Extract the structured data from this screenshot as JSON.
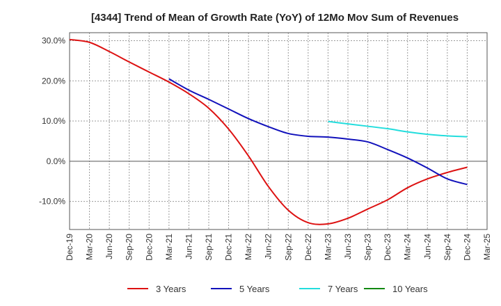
{
  "chart_data": {
    "type": "line",
    "title": "[4344]  Trend of Mean of Growth Rate (YoY) of 12Mo Mov Sum of Revenues",
    "xlabel": "",
    "ylabel": "",
    "ylim": [
      -17,
      32
    ],
    "x_ticks": [
      "Dec-19",
      "Mar-20",
      "Jun-20",
      "Sep-20",
      "Dec-20",
      "Mar-21",
      "Jun-21",
      "Sep-21",
      "Dec-21",
      "Mar-22",
      "Jun-22",
      "Sep-22",
      "Dec-22",
      "Mar-23",
      "Jun-23",
      "Sep-23",
      "Dec-23",
      "Mar-24",
      "Jun-24",
      "Sep-24",
      "Dec-24",
      "Mar-25"
    ],
    "y_ticks": [
      {
        "value": 30,
        "label": "30.0%"
      },
      {
        "value": 20,
        "label": "20.0%"
      },
      {
        "value": 10,
        "label": "10.0%"
      },
      {
        "value": 0,
        "label": "0.0%"
      },
      {
        "value": -10,
        "label": "-10.0%"
      }
    ],
    "grid": true,
    "legend_position": "bottom",
    "series": [
      {
        "name": "3 Years",
        "color": "#dd1111",
        "x": [
          0,
          1,
          2,
          3,
          4,
          5,
          6,
          7,
          8,
          9,
          10,
          11,
          12,
          13,
          14,
          15,
          16,
          17,
          18,
          19,
          20
        ],
        "values": [
          30.3,
          29.6,
          27.3,
          24.7,
          22.2,
          19.7,
          16.8,
          13.2,
          8.0,
          1.3,
          -6.3,
          -12.2,
          -15.3,
          -15.6,
          -14.2,
          -11.9,
          -9.6,
          -6.6,
          -4.4,
          -2.8,
          -1.5
        ]
      },
      {
        "name": "5 Years",
        "color": "#1111bb",
        "x": [
          5,
          6,
          7,
          8,
          9,
          10,
          11,
          12,
          13,
          14,
          15,
          16,
          17,
          18,
          19,
          20
        ],
        "values": [
          20.5,
          17.7,
          15.4,
          13.0,
          10.6,
          8.6,
          6.9,
          6.2,
          6.0,
          5.5,
          4.8,
          2.9,
          0.8,
          -1.7,
          -4.4,
          -5.8
        ]
      },
      {
        "name": "7 Years",
        "color": "#22dddd",
        "x": [
          13,
          14,
          15,
          16,
          17,
          18,
          19,
          20
        ],
        "values": [
          9.9,
          9.3,
          8.7,
          8.1,
          7.3,
          6.7,
          6.3,
          6.1
        ]
      },
      {
        "name": "10 Years",
        "color": "#118811",
        "x": [],
        "values": []
      }
    ]
  }
}
